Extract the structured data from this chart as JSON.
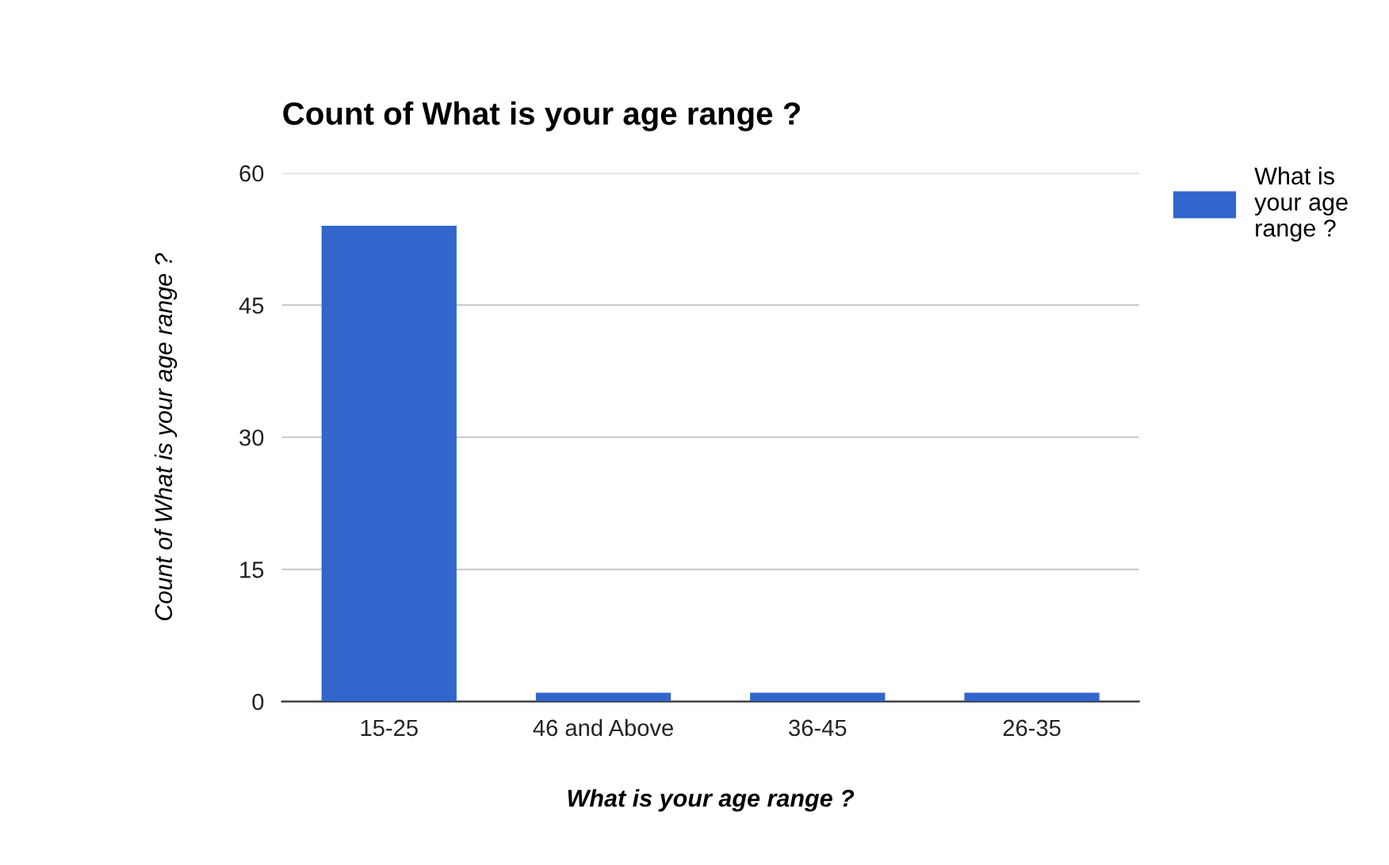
{
  "chart_data": {
    "type": "bar",
    "title": "Count of What is your age range ?",
    "xlabel": "What is your age range ?",
    "ylabel": "Count of What is your age range ?",
    "categories": [
      "15-25",
      "46 and Above",
      "36-45",
      "26-35"
    ],
    "series": [
      {
        "name": "What is your age range ?",
        "color": "#3366cc",
        "values": [
          54,
          1,
          1,
          1
        ]
      }
    ],
    "ylim": [
      0,
      60
    ],
    "yticks": [
      0,
      15,
      30,
      45,
      60
    ],
    "grid": "y",
    "legend": "right"
  }
}
